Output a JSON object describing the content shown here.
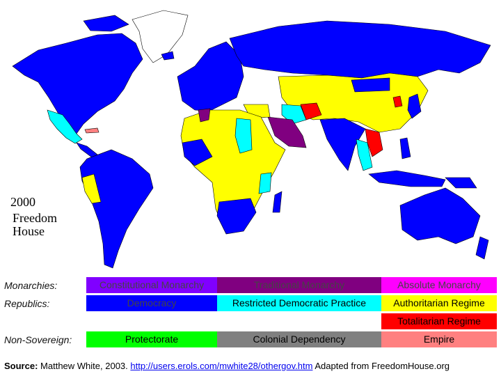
{
  "map": {
    "year": "2000",
    "source_line1": "Freedom",
    "source_line2": "House"
  },
  "legend": {
    "rows": [
      {
        "label": "Monarchies:",
        "entries": [
          {
            "text": "Constitutional Monarchy",
            "color": "#8000ff"
          },
          {
            "text": "Traditional Monarchy",
            "color": "#800080"
          },
          {
            "text": "Absolute Monarchy",
            "color": "#ff00ff"
          }
        ]
      },
      {
        "label": "Republics:",
        "entries": [
          {
            "text": "Democracy",
            "color": "#0000ff"
          },
          {
            "text": "Restricted Democratic Practice",
            "color": "#00ffff"
          },
          {
            "text": "Authoritarian Regime",
            "color": "#ffff00"
          }
        ]
      },
      {
        "entries": [
          {
            "text": "Totalitarian Regime",
            "color": "#ff0000"
          }
        ]
      },
      {
        "label": "Non-Sovereign:",
        "entries": [
          {
            "text": "Protectorate",
            "color": "#00ff00"
          },
          {
            "text": "Colonial Dependency",
            "color": "#808080"
          },
          {
            "text": "Empire",
            "color": "#ff8080"
          }
        ]
      }
    ]
  },
  "source": {
    "heading": "Source:",
    "author": "Matthew White, 2003.",
    "url": "http://users.erols.com/mwhite28/othergov.htm",
    "note": "Adapted from FreedomHouse.org"
  }
}
